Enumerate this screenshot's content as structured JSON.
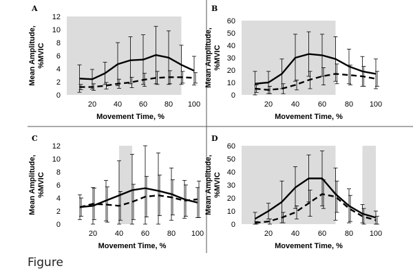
{
  "figure_caption": "Figure",
  "colors": {
    "shade": "#dcdcdc",
    "line": "#000000",
    "divider": "#555555"
  },
  "chart_data": [
    {
      "panel": "A",
      "type": "line",
      "xlabel": "Movement Time, %",
      "ylabel_line1": "Mean Amplitude,",
      "ylabel_line2": "%MVIC",
      "xlim": [
        0,
        100
      ],
      "ylim": [
        0,
        12
      ],
      "xticks": [
        20,
        40,
        60,
        80,
        100
      ],
      "yticks": [
        0,
        2,
        4,
        6,
        8,
        10,
        12
      ],
      "shaded": [
        [
          0,
          90
        ]
      ],
      "x": [
        10,
        20,
        30,
        40,
        50,
        60,
        70,
        80,
        90,
        100
      ],
      "series": [
        {
          "name": "solid",
          "style": "solid",
          "values": [
            2.5,
            2.4,
            3.3,
            4.7,
            5.3,
            5.4,
            6.1,
            5.7,
            4.6,
            3.7
          ],
          "err": [
            2.1,
            1.5,
            1.7,
            3.3,
            3.6,
            3.8,
            4.4,
            4.1,
            3.0,
            2.2
          ]
        },
        {
          "name": "dashed",
          "style": "dashed",
          "values": [
            1.2,
            1.2,
            1.4,
            1.7,
            1.9,
            2.3,
            2.6,
            2.7,
            2.7,
            2.6
          ],
          "err": [
            0.4,
            0.5,
            0.5,
            0.7,
            0.8,
            1.0,
            1.0,
            1.0,
            0.9,
            0.8
          ]
        }
      ]
    },
    {
      "panel": "B",
      "type": "line",
      "xlabel": "Movement Time, %",
      "ylabel_line1": "Mean Amplitude,",
      "ylabel_line2": "%MVIC",
      "xlim": [
        0,
        100
      ],
      "ylim": [
        0,
        60
      ],
      "xticks": [
        20,
        40,
        60,
        80,
        100
      ],
      "yticks": [
        0,
        10,
        20,
        30,
        40,
        50,
        60
      ],
      "shaded": [
        [
          0,
          70
        ]
      ],
      "x": [
        10,
        20,
        30,
        40,
        50,
        60,
        70,
        80,
        90,
        100
      ],
      "series": [
        {
          "name": "solid",
          "style": "solid",
          "values": [
            9,
            10,
            17,
            30,
            33,
            32,
            29,
            23,
            19,
            17
          ],
          "err": [
            10,
            9,
            12,
            19,
            18,
            17,
            18,
            14,
            12,
            12
          ]
        },
        {
          "name": "dashed",
          "style": "dashed",
          "values": [
            5,
            4,
            5,
            8,
            12,
            15,
            17,
            16,
            15,
            13
          ],
          "err": [
            3,
            3,
            4,
            4,
            7,
            7,
            8,
            8,
            8,
            6
          ]
        }
      ]
    },
    {
      "panel": "C",
      "type": "line",
      "xlabel": "Movement Time, %",
      "ylabel_line1": "Mean Amplitude,",
      "ylabel_line2": "%MVIC",
      "xlim": [
        0,
        100
      ],
      "ylim": [
        0,
        12
      ],
      "xticks": [
        20,
        40,
        60,
        80,
        100
      ],
      "yticks": [
        0,
        2,
        4,
        6,
        8,
        10,
        12
      ],
      "shaded": [
        [
          40,
          50
        ]
      ],
      "x": [
        10,
        20,
        30,
        40,
        50,
        60,
        70,
        80,
        90,
        100
      ],
      "series": [
        {
          "name": "solid",
          "style": "solid",
          "values": [
            2.6,
            2.8,
            3.6,
            4.4,
            5.2,
            5.5,
            5.1,
            4.6,
            3.8,
            3.3
          ],
          "err": [
            1.9,
            2.8,
            3.1,
            5.3,
            5.5,
            6.5,
            5.8,
            4.0,
            2.9,
            2.3
          ]
        },
        {
          "name": "dashed",
          "style": "dashed",
          "values": [
            2.6,
            3.1,
            3.0,
            2.8,
            3.4,
            4.2,
            4.4,
            4.1,
            3.6,
            3.8
          ],
          "err": [
            1.4,
            2.4,
            2.7,
            2.2,
            2.7,
            3.1,
            3.1,
            2.7,
            2.4,
            2.8
          ]
        }
      ]
    },
    {
      "panel": "D",
      "type": "line",
      "xlabel": "Movement Time, %",
      "ylabel_line1": "Mean Amplitude,",
      "ylabel_line2": "%MVIC",
      "xlim": [
        0,
        100
      ],
      "ylim": [
        0,
        60
      ],
      "xticks": [
        20,
        40,
        60,
        80,
        100
      ],
      "yticks": [
        0,
        10,
        20,
        30,
        40,
        50,
        60
      ],
      "shaded": [
        [
          0,
          70
        ],
        [
          90,
          100
        ]
      ],
      "x": [
        10,
        20,
        30,
        40,
        50,
        60,
        70,
        80,
        90,
        100
      ],
      "series": [
        {
          "name": "solid",
          "style": "solid",
          "values": [
            4,
            10,
            17,
            28,
            35,
            35,
            23,
            14,
            8,
            5
          ],
          "err": [
            5,
            6,
            16,
            16,
            18,
            21,
            20,
            13,
            7,
            5
          ]
        },
        {
          "name": "dashed",
          "style": "dashed",
          "values": [
            1,
            2,
            5,
            9,
            16,
            23,
            21,
            12,
            6,
            3
          ],
          "err": [
            1,
            2,
            4,
            5,
            10,
            11,
            12,
            10,
            6,
            3
          ]
        }
      ]
    }
  ]
}
